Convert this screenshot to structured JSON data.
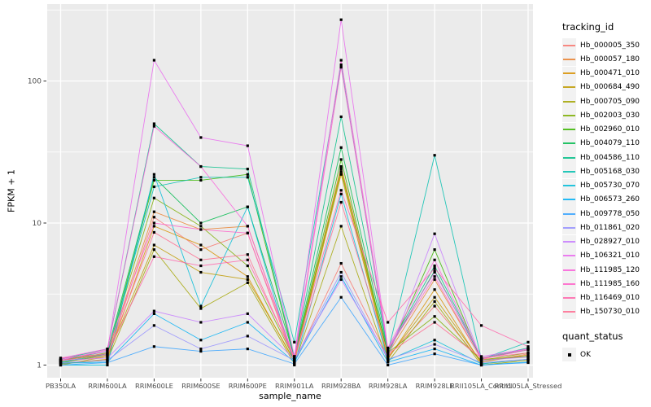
{
  "chart_data": {
    "type": "line",
    "xlabel": "sample_name",
    "ylabel": "FPKM + 1",
    "y_scale": "log10",
    "y_ticks": [
      1,
      10,
      100
    ],
    "ylim": [
      0.82,
      350
    ],
    "grid": "white major and minor lines on gray panel",
    "panel_bg": "#EBEBEB",
    "grid_color": "#FFFFFF",
    "tick_label_color": "#4D4D4D",
    "marker": "filled-black-square",
    "legend_position": "right",
    "categories": [
      "PB350LA",
      "RRIM600LA",
      "RRIM600LE",
      "RRIM600SE",
      "RRIM600PE",
      "RRIM901LA",
      "RRIM928BA",
      "RRIM928LA",
      "RRIM928LE",
      "RRII105LA_Control",
      "RRII105LA_Stressed"
    ],
    "series": [
      {
        "name": "Hb_000005_350",
        "color": "#F8766D",
        "values": [
          1.05,
          1.15,
          11,
          6.5,
          8.5,
          1.05,
          5.2,
          1.15,
          2.6,
          1.05,
          1.2
        ]
      },
      {
        "name": "Hb_000057_180",
        "color": "#EA8331",
        "values": [
          1.08,
          1.2,
          12,
          9,
          9.5,
          1.1,
          25,
          1.2,
          4.0,
          1.1,
          1.15
        ]
      },
      {
        "name": "Hb_000471_010",
        "color": "#D89000",
        "values": [
          1.02,
          1.1,
          9.5,
          7,
          4.2,
          1.05,
          22,
          1.1,
          3.4,
          1.02,
          1.1
        ]
      },
      {
        "name": "Hb_000684_490",
        "color": "#C09B00",
        "values": [
          1.0,
          1.15,
          7,
          4.5,
          4.0,
          1.08,
          24,
          1.12,
          3.0,
          1.05,
          1.18
        ]
      },
      {
        "name": "Hb_000705_090",
        "color": "#A3A500",
        "values": [
          1.03,
          1.08,
          6.5,
          2.5,
          3.8,
          1.02,
          9.5,
          1.05,
          2.8,
          1.0,
          1.08
        ]
      },
      {
        "name": "Hb_002003_030",
        "color": "#7CAE00",
        "values": [
          1.07,
          1.22,
          15,
          9.5,
          5.0,
          1.1,
          23,
          1.22,
          2.2,
          1.08,
          1.22
        ]
      },
      {
        "name": "Hb_002960_010",
        "color": "#39B600",
        "values": [
          1.04,
          1.18,
          20,
          20,
          22,
          1.12,
          28,
          1.18,
          6.5,
          1.08,
          1.15
        ]
      },
      {
        "name": "Hb_004079_110",
        "color": "#00BB4E",
        "values": [
          1.08,
          1.25,
          21,
          10,
          13,
          1.15,
          34,
          1.25,
          4.6,
          1.12,
          1.28
        ]
      },
      {
        "name": "Hb_004586_110",
        "color": "#00C087",
        "values": [
          1.1,
          1.3,
          50,
          25,
          24,
          1.15,
          56,
          1.28,
          5.0,
          1.12,
          1.32
        ]
      },
      {
        "name": "Hb_005168_030",
        "color": "#00C0AF",
        "values": [
          1.05,
          1.2,
          18,
          21,
          21,
          1.45,
          130,
          1.22,
          30,
          1.1,
          1.45
        ]
      },
      {
        "name": "Hb_005730_070",
        "color": "#00BCD8",
        "values": [
          1.0,
          1.0,
          22,
          2.6,
          13,
          1.0,
          16,
          1.08,
          1.5,
          1.02,
          1.1
        ]
      },
      {
        "name": "Hb_006573_260",
        "color": "#00B0F6",
        "values": [
          1.03,
          1.05,
          2.3,
          1.5,
          2.0,
          1.05,
          4.2,
          1.05,
          1.3,
          1.0,
          1.05
        ]
      },
      {
        "name": "Hb_009778_050",
        "color": "#35A2FF",
        "values": [
          1.0,
          1.04,
          1.35,
          1.25,
          1.3,
          1.02,
          3.0,
          1.0,
          1.2,
          1.0,
          1.04
        ]
      },
      {
        "name": "Hb_011861_020",
        "color": "#9590FF",
        "values": [
          1.04,
          1.08,
          1.9,
          1.3,
          1.6,
          1.08,
          4.5,
          1.1,
          1.4,
          1.04,
          1.1
        ]
      },
      {
        "name": "Hb_028927_010",
        "color": "#C77CFF",
        "values": [
          1.08,
          1.12,
          2.4,
          2.0,
          2.3,
          1.1,
          4.0,
          1.14,
          8.4,
          1.08,
          1.14
        ]
      },
      {
        "name": "Hb_106321_010",
        "color": "#EA69EE",
        "values": [
          1.1,
          1.25,
          140,
          40,
          35,
          1.15,
          270,
          1.3,
          4.5,
          1.15,
          1.3
        ]
      },
      {
        "name": "Hb_111985_120",
        "color": "#FA62DB",
        "values": [
          1.12,
          1.3,
          48,
          25,
          9.5,
          1.12,
          140,
          1.32,
          5.5,
          1.12,
          1.3
        ]
      },
      {
        "name": "Hb_111985_160",
        "color": "#FF61C9",
        "values": [
          1.08,
          1.28,
          10,
          9,
          8.5,
          1.1,
          125,
          1.28,
          4.2,
          1.1,
          1.28
        ]
      },
      {
        "name": "Hb_116469_010",
        "color": "#FF65AC",
        "values": [
          1.12,
          1.2,
          5.8,
          5.0,
          5.5,
          1.14,
          17,
          2.0,
          4.8,
          1.9,
          1.35
        ]
      },
      {
        "name": "Hb_150730_010",
        "color": "#FF6C90",
        "values": [
          1.08,
          1.18,
          8.6,
          5.5,
          6.0,
          1.1,
          14,
          1.2,
          2.0,
          1.12,
          1.22
        ]
      }
    ],
    "legend": {
      "tracking": {
        "title": "tracking_id"
      },
      "quant": {
        "title": "quant_status",
        "items": [
          "OK"
        ]
      }
    }
  }
}
